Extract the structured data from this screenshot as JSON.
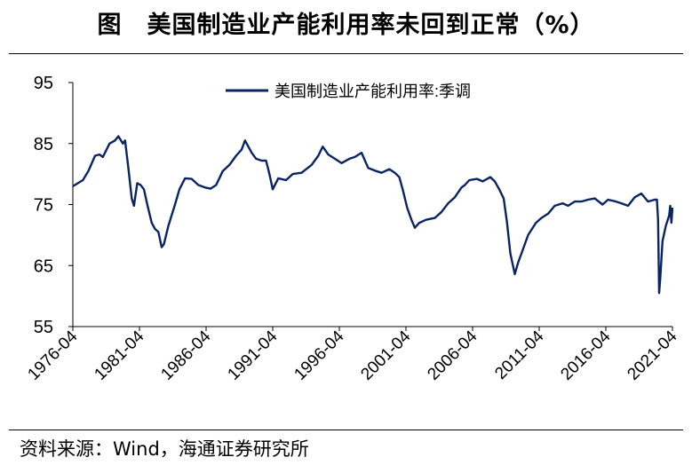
{
  "title": "图　美国制造业产能利用率未回到正常（%）",
  "source": "资料来源：Wind，海通证券研究所",
  "colors": {
    "line": "#0a2463",
    "axis": "#000000"
  },
  "chart_data": {
    "type": "line",
    "title": "美国制造业产能利用率未回到正常（%）",
    "legend": {
      "entries": [
        "美国制造业产能利用率:季调"
      ],
      "placement": "top-center"
    },
    "x_tick_labels": [
      "1976-04",
      "1981-04",
      "1986-04",
      "1991-04",
      "1996-04",
      "2001-04",
      "2006-04",
      "2011-04",
      "2016-04",
      "2021-04"
    ],
    "xlim": [
      "1976-04",
      "2021-04"
    ],
    "ylim": [
      55,
      95
    ],
    "y_ticks": [
      55,
      65,
      75,
      85,
      95
    ],
    "grid": false,
    "series": [
      {
        "name": "美国制造业产能利用率:季调",
        "points": [
          [
            "1976-04",
            78
          ],
          [
            "1977-01",
            79
          ],
          [
            "1977-06",
            80.5
          ],
          [
            "1977-12",
            83
          ],
          [
            "1978-04",
            83.2
          ],
          [
            "1978-07",
            82.8
          ],
          [
            "1979-01",
            85
          ],
          [
            "1979-06",
            85.5
          ],
          [
            "1979-09",
            86.2
          ],
          [
            "1980-01",
            85
          ],
          [
            "1980-03",
            85.5
          ],
          [
            "1980-06",
            81
          ],
          [
            "1980-09",
            76
          ],
          [
            "1980-11",
            74.8
          ],
          [
            "1981-02",
            78.5
          ],
          [
            "1981-05",
            78.2
          ],
          [
            "1981-08",
            77.5
          ],
          [
            "1981-11",
            75
          ],
          [
            "1982-03",
            72
          ],
          [
            "1982-06",
            71
          ],
          [
            "1982-09",
            70.5
          ],
          [
            "1982-12",
            68
          ],
          [
            "1983-02",
            68.5
          ],
          [
            "1983-06",
            71.5
          ],
          [
            "1983-12",
            75
          ],
          [
            "1984-04",
            77.5
          ],
          [
            "1984-09",
            79.3
          ],
          [
            "1985-03",
            79.2
          ],
          [
            "1985-09",
            78.2
          ],
          [
            "1986-03",
            77.8
          ],
          [
            "1986-08",
            77.6
          ],
          [
            "1987-01",
            78.2
          ],
          [
            "1987-07",
            80.5
          ],
          [
            "1988-01",
            81.5
          ],
          [
            "1988-07",
            83
          ],
          [
            "1988-12",
            84
          ],
          [
            "1989-03",
            85.5
          ],
          [
            "1989-09",
            83.5
          ],
          [
            "1990-01",
            82.5
          ],
          [
            "1990-06",
            82.2
          ],
          [
            "1990-10",
            82.2
          ],
          [
            "1991-01",
            80
          ],
          [
            "1991-04",
            77.5
          ],
          [
            "1991-09",
            79.3
          ],
          [
            "1992-04",
            79
          ],
          [
            "1992-10",
            80
          ],
          [
            "1993-06",
            80.2
          ],
          [
            "1994-03",
            81.5
          ],
          [
            "1994-09",
            83
          ],
          [
            "1995-01",
            84.5
          ],
          [
            "1995-06",
            83.2
          ],
          [
            "1995-12",
            82.5
          ],
          [
            "1996-06",
            81.8
          ],
          [
            "1997-01",
            82.5
          ],
          [
            "1997-06",
            82.8
          ],
          [
            "1997-12",
            83.5
          ],
          [
            "1998-06",
            81
          ],
          [
            "1999-01",
            80.5
          ],
          [
            "1999-06",
            80.2
          ],
          [
            "2000-01",
            80.8
          ],
          [
            "2000-06",
            80.2
          ],
          [
            "2000-10",
            79.5
          ],
          [
            "2001-01",
            77.5
          ],
          [
            "2001-05",
            74.5
          ],
          [
            "2001-09",
            72.5
          ],
          [
            "2001-12",
            71.2
          ],
          [
            "2002-04",
            72
          ],
          [
            "2002-10",
            72.5
          ],
          [
            "2003-06",
            72.8
          ],
          [
            "2003-12",
            73.8
          ],
          [
            "2004-06",
            75.2
          ],
          [
            "2004-12",
            76.2
          ],
          [
            "2005-06",
            77.8
          ],
          [
            "2005-09",
            78.2
          ],
          [
            "2006-01",
            79
          ],
          [
            "2006-08",
            79.2
          ],
          [
            "2007-01",
            78.8
          ],
          [
            "2007-08",
            79.5
          ],
          [
            "2007-12",
            78.8
          ],
          [
            "2008-04",
            77.5
          ],
          [
            "2008-08",
            76
          ],
          [
            "2008-11",
            72
          ],
          [
            "2009-02",
            67
          ],
          [
            "2009-06",
            63.6
          ],
          [
            "2009-09",
            65.5
          ],
          [
            "2010-01",
            67.5
          ],
          [
            "2010-06",
            70
          ],
          [
            "2011-01",
            72
          ],
          [
            "2011-06",
            72.8
          ],
          [
            "2011-12",
            73.5
          ],
          [
            "2012-06",
            74.8
          ],
          [
            "2013-01",
            75.2
          ],
          [
            "2013-06",
            74.8
          ],
          [
            "2013-12",
            75.5
          ],
          [
            "2014-06",
            75.5
          ],
          [
            "2014-12",
            75.8
          ],
          [
            "2015-06",
            76
          ],
          [
            "2016-01",
            75
          ],
          [
            "2016-06",
            75.8
          ],
          [
            "2017-01",
            75.5
          ],
          [
            "2017-06",
            75.2
          ],
          [
            "2017-12",
            74.8
          ],
          [
            "2018-06",
            76.2
          ],
          [
            "2018-12",
            76.8
          ],
          [
            "2019-06",
            75.5
          ],
          [
            "2019-12",
            75.8
          ],
          [
            "2020-02",
            75.8
          ],
          [
            "2020-03",
            72.5
          ],
          [
            "2020-04",
            60.5
          ],
          [
            "2020-05",
            63
          ],
          [
            "2020-07",
            69
          ],
          [
            "2020-10",
            71.5
          ],
          [
            "2021-01",
            73.2
          ],
          [
            "2021-02",
            74.8
          ],
          [
            "2021-03",
            72
          ],
          [
            "2021-04",
            74.5
          ]
        ]
      }
    ]
  }
}
